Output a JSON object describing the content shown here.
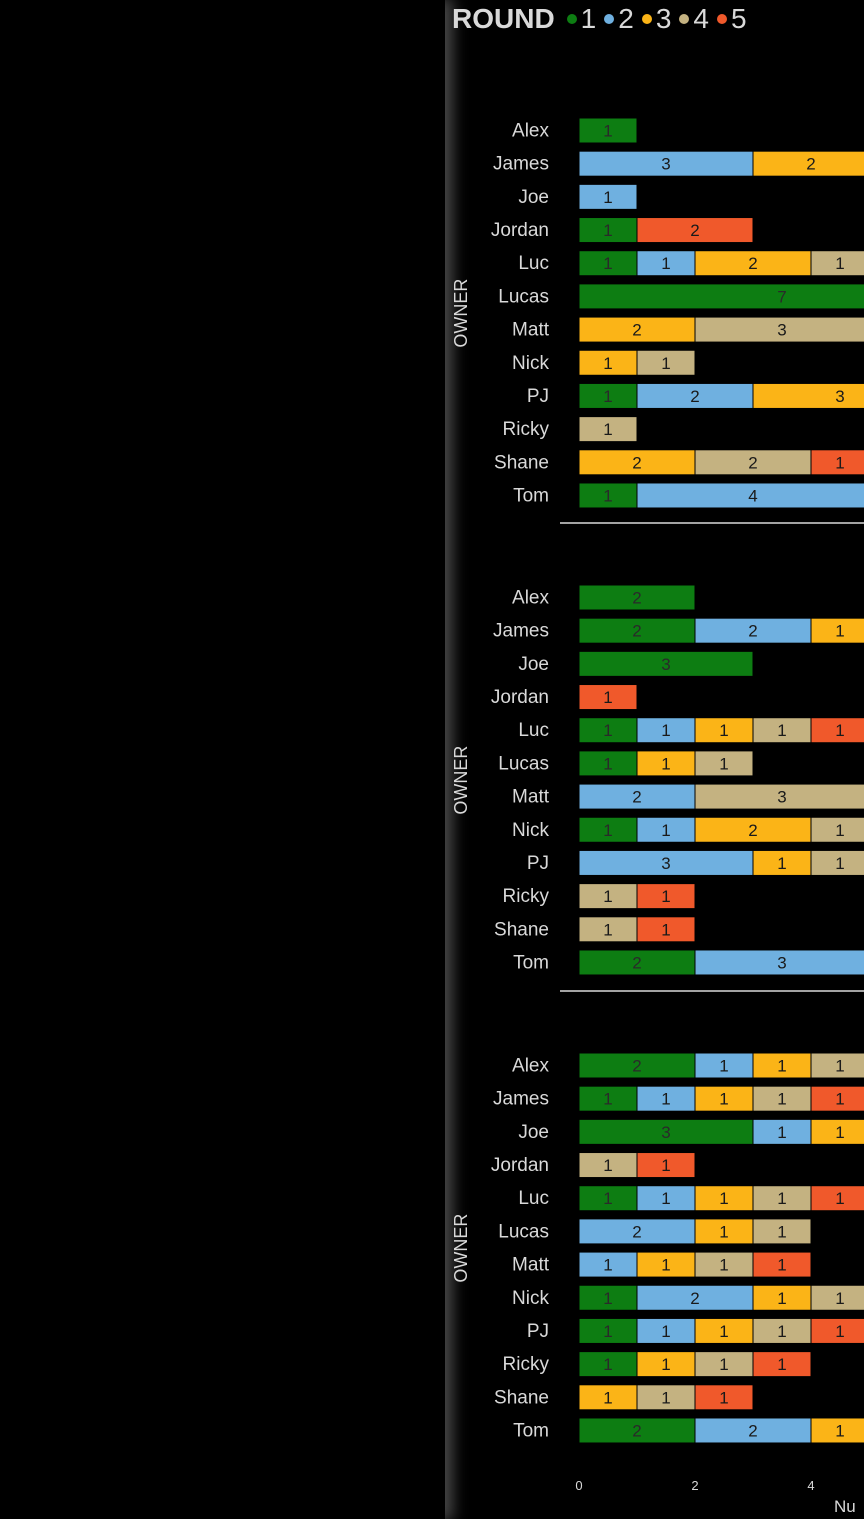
{
  "legend": {
    "title": "ROUND",
    "items": [
      {
        "label": "1",
        "color": "#0d7d12"
      },
      {
        "label": "2",
        "color": "#6fb0e0"
      },
      {
        "label": "3",
        "color": "#fbb417"
      },
      {
        "label": "4",
        "color": "#c4b281"
      },
      {
        "label": "5",
        "color": "#f0592b"
      }
    ]
  },
  "chart_data": {
    "type": "bar",
    "orientation": "horizontal",
    "stacked": true,
    "y_axis_label": "OWNER",
    "x_axis_label": "Nu",
    "x_ticks": [
      "0",
      "2",
      "4"
    ],
    "x_range": [
      0,
      4.9
    ],
    "series_names": [
      "1",
      "2",
      "3",
      "4",
      "5"
    ],
    "panels": [
      {
        "categories": [
          "Alex",
          "James",
          "Joe",
          "Jordan",
          "Luc",
          "Lucas",
          "Matt",
          "Nick",
          "PJ",
          "Ricky",
          "Shane",
          "Tom"
        ],
        "values": [
          [
            1,
            0,
            0,
            0,
            0
          ],
          [
            0,
            3,
            2,
            0,
            0
          ],
          [
            0,
            1,
            0,
            0,
            0
          ],
          [
            1,
            0,
            0,
            0,
            2
          ],
          [
            1,
            1,
            2,
            1,
            0
          ],
          [
            7,
            0,
            0,
            0,
            0
          ],
          [
            0,
            0,
            2,
            3,
            0
          ],
          [
            0,
            0,
            1,
            1,
            0
          ],
          [
            1,
            2,
            3,
            0,
            0
          ],
          [
            0,
            0,
            0,
            1,
            0
          ],
          [
            0,
            0,
            2,
            2,
            1
          ],
          [
            1,
            4,
            0,
            0,
            0
          ]
        ]
      },
      {
        "categories": [
          "Alex",
          "James",
          "Joe",
          "Jordan",
          "Luc",
          "Lucas",
          "Matt",
          "Nick",
          "PJ",
          "Ricky",
          "Shane",
          "Tom"
        ],
        "values": [
          [
            2,
            0,
            0,
            0,
            0
          ],
          [
            2,
            2,
            1,
            0,
            0
          ],
          [
            3,
            0,
            0,
            0,
            0
          ],
          [
            0,
            0,
            0,
            0,
            1
          ],
          [
            1,
            1,
            1,
            1,
            1
          ],
          [
            1,
            0,
            1,
            1,
            0
          ],
          [
            0,
            2,
            0,
            3,
            0
          ],
          [
            1,
            1,
            2,
            1,
            0
          ],
          [
            0,
            3,
            1,
            1,
            0
          ],
          [
            0,
            0,
            0,
            1,
            1
          ],
          [
            0,
            0,
            0,
            1,
            1
          ],
          [
            2,
            3,
            0,
            0,
            0
          ]
        ]
      },
      {
        "categories": [
          "Alex",
          "James",
          "Joe",
          "Jordan",
          "Luc",
          "Lucas",
          "Matt",
          "Nick",
          "PJ",
          "Ricky",
          "Shane",
          "Tom"
        ],
        "values": [
          [
            2,
            1,
            1,
            1,
            0
          ],
          [
            1,
            1,
            1,
            1,
            1
          ],
          [
            3,
            1,
            1,
            0,
            0
          ],
          [
            0,
            0,
            0,
            1,
            1
          ],
          [
            1,
            1,
            1,
            1,
            1
          ],
          [
            0,
            2,
            1,
            1,
            0
          ],
          [
            0,
            1,
            1,
            1,
            1
          ],
          [
            1,
            2,
            1,
            1,
            0
          ],
          [
            1,
            1,
            1,
            1,
            1
          ],
          [
            1,
            0,
            1,
            1,
            1
          ],
          [
            0,
            0,
            1,
            1,
            1
          ],
          [
            2,
            2,
            1,
            0,
            0
          ]
        ]
      }
    ]
  }
}
